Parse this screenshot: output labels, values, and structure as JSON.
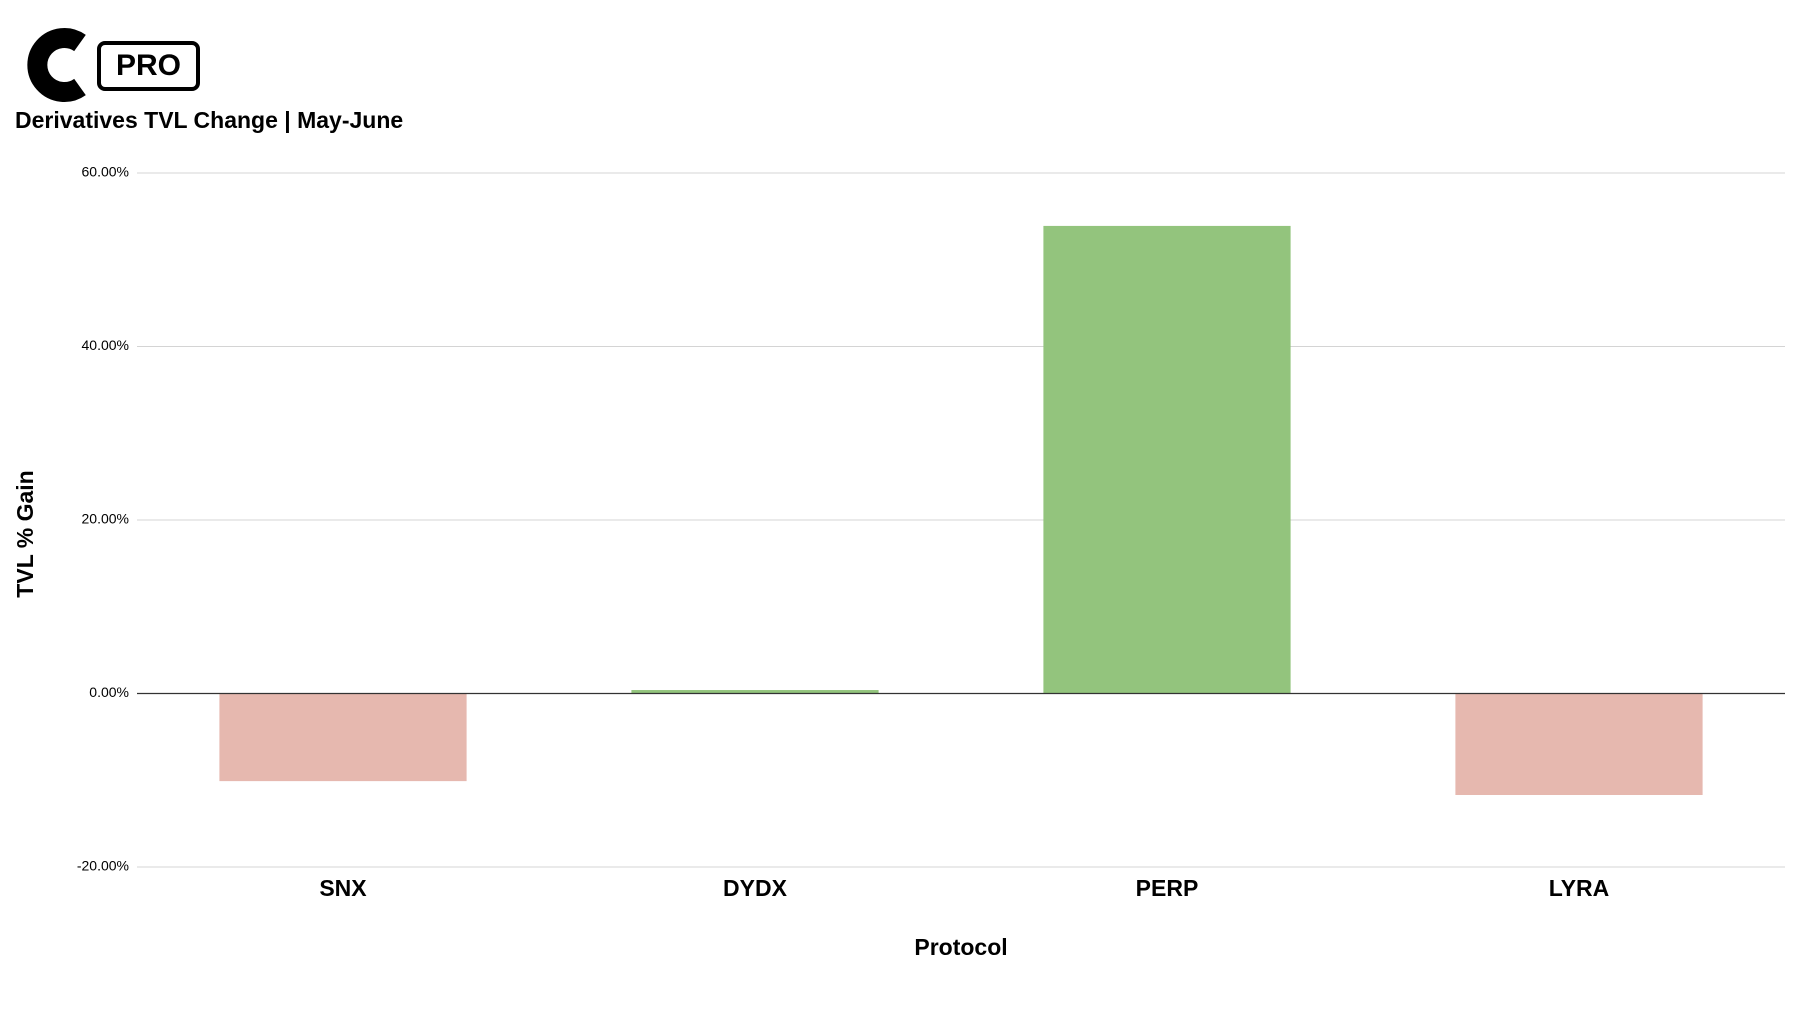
{
  "logo": {
    "text": "PRO"
  },
  "chart_data": {
    "type": "bar",
    "title": "Derivatives TVL Change | May-June",
    "x_label": "Protocol",
    "y_label": "TVL % Gain",
    "categories": [
      "SNX",
      "DYDX",
      "PERP",
      "LYRA"
    ],
    "values": [
      -10.1,
      0.4,
      53.9,
      -11.7
    ],
    "colors": [
      "#e6b8af",
      "#93c47d",
      "#93c47d",
      "#e6b8af"
    ],
    "ylim": [
      -20,
      60
    ],
    "yticks": [
      {
        "value": -20,
        "label": "-20.00%"
      },
      {
        "value": 0,
        "label": "0.00%"
      },
      {
        "value": 20,
        "label": "20.00%"
      },
      {
        "value": 40,
        "label": "40.00%"
      },
      {
        "value": 60,
        "label": "60.00%"
      }
    ],
    "grid": true
  }
}
